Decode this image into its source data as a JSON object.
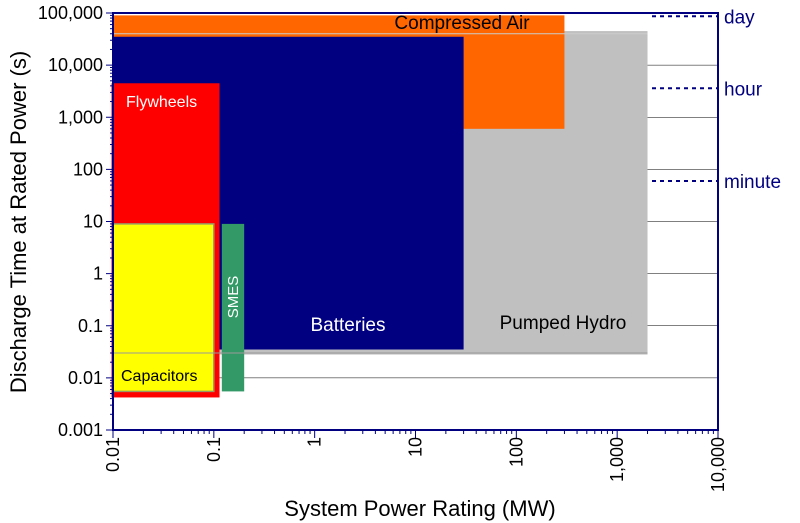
{
  "chart_data": {
    "type": "area",
    "title": "",
    "xlabel": "System Power Rating (MW)",
    "ylabel": "Discharge Time at Rated Power (s)",
    "x_scale": "log",
    "y_scale": "log",
    "xlim": [
      0.01,
      10000
    ],
    "ylim": [
      0.001,
      100000
    ],
    "x_ticks": [
      {
        "value": 0.01,
        "label": "0.01"
      },
      {
        "value": 0.1,
        "label": "0.1"
      },
      {
        "value": 1,
        "label": "1"
      },
      {
        "value": 10,
        "label": "10"
      },
      {
        "value": 100,
        "label": "100"
      },
      {
        "value": 1000,
        "label": "1,000"
      },
      {
        "value": 10000,
        "label": "10,000"
      }
    ],
    "y_ticks": [
      {
        "value": 0.001,
        "label": "0.001"
      },
      {
        "value": 0.01,
        "label": "0.01"
      },
      {
        "value": 0.1,
        "label": "0.1"
      },
      {
        "value": 1,
        "label": "1"
      },
      {
        "value": 10,
        "label": "10"
      },
      {
        "value": 100,
        "label": "100"
      },
      {
        "value": 1000,
        "label": "1,000"
      },
      {
        "value": 10000,
        "label": "10,000"
      },
      {
        "value": 100000,
        "label": "100,000"
      }
    ],
    "regions": [
      {
        "label": "Pumped Hydro",
        "x": [
          0.01,
          2000
        ],
        "y": [
          0.028,
          45000
        ],
        "color": "#c0c0c0",
        "text_color": "#000000"
      },
      {
        "label": "Compressed Air",
        "x": [
          0.01,
          300
        ],
        "y": [
          600,
          90000
        ],
        "color": "#ff6600",
        "text_color": "#000000"
      },
      {
        "label": "Batteries",
        "x": [
          0.01,
          30
        ],
        "y": [
          0.035,
          35000
        ],
        "color": "#000080",
        "text_color": "#ffffff"
      },
      {
        "label": "Flywheels",
        "x": [
          0.01,
          0.11
        ],
        "y": [
          0.0045,
          4200
        ],
        "color": "#ff0000",
        "text_color": "#ffffff"
      },
      {
        "label": "Capacitors",
        "x": [
          0.01,
          0.1
        ],
        "y": [
          0.0055,
          9
        ],
        "color": "#ffff00",
        "text_color": "#000000"
      },
      {
        "label": "SMES",
        "x": [
          0.12,
          0.2
        ],
        "y": [
          0.0055,
          9
        ],
        "color": "#339966",
        "text_color": "#ffffff"
      }
    ],
    "reference_lines": [
      {
        "label": "day",
        "value": 86400
      },
      {
        "label": "hour",
        "value": 3600
      },
      {
        "label": "minute",
        "value": 60
      }
    ],
    "colors": {
      "axis": "#000080",
      "reference": "#000080",
      "grid": "#000000"
    },
    "grid": true,
    "legend": "none"
  }
}
